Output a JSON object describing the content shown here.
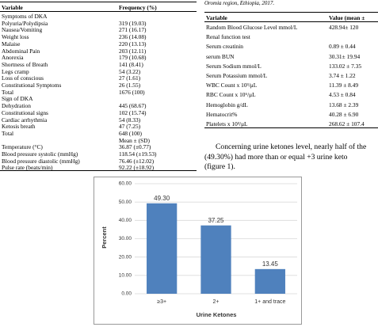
{
  "left_table": {
    "header": [
      "Variable",
      "Frequency (%)"
    ],
    "rows": [
      {
        "variable": "Symptoms of DKA"
      },
      {
        "variable": "Polyuria/Polydipsia",
        "value": "319 (19.03)"
      },
      {
        "variable": "Nausea/Vomiting",
        "value": "271 (16.17)"
      },
      {
        "variable": "Weight loss",
        "value": "236 (14.08)"
      },
      {
        "variable": "Malaise",
        "value": "220 (13.13)"
      },
      {
        "variable": "Abdominal Pain",
        "value": "203 (12.11)"
      },
      {
        "variable": "Anorexia",
        "value": "179 (10.68)"
      },
      {
        "variable": "Shortness of Breath",
        "value": "141 (8.41)"
      },
      {
        "variable": "Legs cramp",
        "value": "54 (3.22)"
      },
      {
        "variable": "Loss of conscious",
        "value": "27 (1.61)"
      },
      {
        "variable": "Constitutional Symptoms",
        "value": "26 (1.55)"
      },
      {
        "variable": "Total",
        "value": "1676 (100)"
      },
      {
        "variable": "Sign of DKA"
      },
      {
        "variable": "Dehydration",
        "value": "445 (68.67)"
      },
      {
        "variable": "Constitutional signs",
        "value": "102 (15.74)"
      },
      {
        "variable": "Cardiac arrhythmia",
        "value": "54 (8.33)"
      },
      {
        "variable": "Ketosis breath",
        "value": "47 (7.25)"
      },
      {
        "variable": "Total",
        "value": "648 (100)"
      },
      {
        "value": "Mean ± (SD)"
      },
      {
        "variable": "Temperature (°C)",
        "value": "36.87 (±0.77)"
      },
      {
        "variable": "Blood pressure systolic (mmHg)",
        "value": "118.54 (±19.53)"
      },
      {
        "variable": "Blood pressure diastolic (mmHg)",
        "value": "76.46 (±12.02)"
      },
      {
        "variable": "Pulse rate (beats/min)",
        "value": "92.22 (±18.92)"
      }
    ]
  },
  "right_table": {
    "caption": "Oromia region, Ethiopia, 2017.",
    "header": [
      "Variable",
      "Value (mean ±"
    ],
    "rows": [
      {
        "variable": "Random Blood Glucose Level mmol/L",
        "value": "428.94± 120"
      },
      {
        "variable": "Renal function test"
      },
      {
        "variable": "Serum creatinin",
        "value": "0.89 ± 0.44"
      },
      {
        "variable": "serum BUN",
        "value": "30.31± 19.94"
      },
      {
        "variable": "Serum Sodium mmol/L",
        "value": "133.02 ± 7.35"
      },
      {
        "variable": "Serum Potassium mmol/L",
        "value": "3.74 ± 1.22"
      },
      {
        "variable": "WBC Count x 10³/μL",
        "value": "11.39 ± 8.49"
      },
      {
        "variable": "RBC Count x 10⁶/μL",
        "value": "4.53 ± 0.84"
      },
      {
        "variable": "Hemoglobin g/dL",
        "value": "13.68 ± 2.39"
      },
      {
        "variable": "Hematocrit%",
        "value": "40.28 ± 6.90"
      },
      {
        "variable": "Platelets x 10³/μL",
        "value": "268.62 ± 107.4"
      }
    ]
  },
  "paragraph": [
    "Concerning urine ketones level, nearly half of the",
    "(49.30%) had more than or equal +3 urine keto",
    "(figure 1)."
  ],
  "chart_data": {
    "type": "bar",
    "categories": [
      "≥3+",
      "2+",
      "1+ and trace"
    ],
    "values": [
      49.3,
      37.25,
      13.45
    ],
    "value_labels": [
      "49.30",
      "37.25",
      "13.45"
    ],
    "color": "#4f81bd",
    "ylim": [
      0,
      60
    ],
    "yticks": [
      {
        "value": 0,
        "label": "0.00"
      },
      {
        "value": 10,
        "label": "10.00"
      },
      {
        "value": 20,
        "label": "20.00"
      },
      {
        "value": 30,
        "label": "30.00"
      },
      {
        "value": 40,
        "label": "40.00"
      },
      {
        "value": 50,
        "label": "50.00"
      },
      {
        "value": 60,
        "label": "60.00"
      }
    ],
    "grid": true,
    "ylabel": "Percent",
    "xlabel": "Urine Ketones"
  }
}
